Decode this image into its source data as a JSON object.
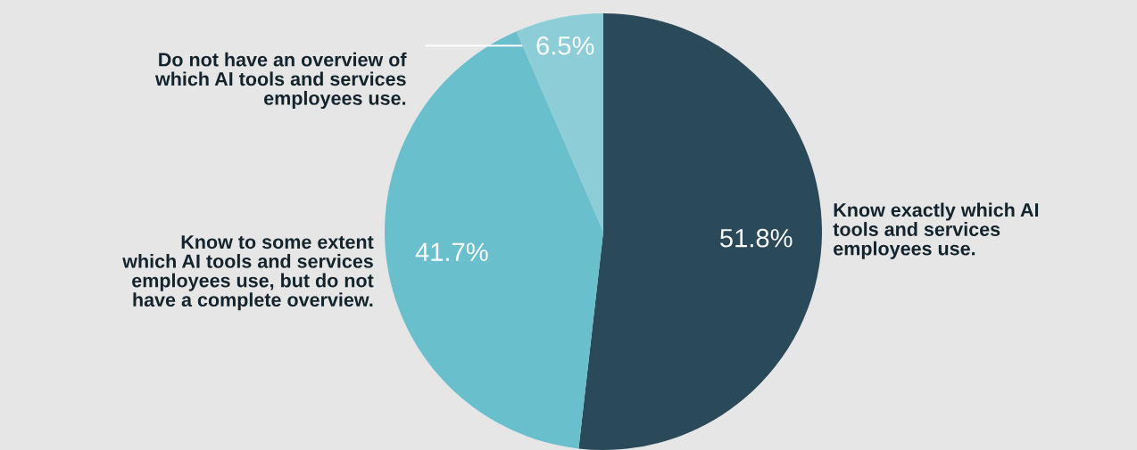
{
  "chart_data": {
    "type": "pie",
    "categories": [
      "Know exactly which AI\ntools and services\nemployees use.",
      "Know to some extent\nwhich AI tools and services\nemployees use, but do not\nhave a complete overview.",
      "Do not have an overview of\nwhich AI tools and services\nemployees use."
    ],
    "values": [
      51.8,
      41.7,
      6.5
    ],
    "colors": [
      "#2a4a5a",
      "#6abfcc",
      "#8ccdd8"
    ],
    "value_labels": [
      "51.8%",
      "41.7%",
      "6.5%"
    ]
  }
}
